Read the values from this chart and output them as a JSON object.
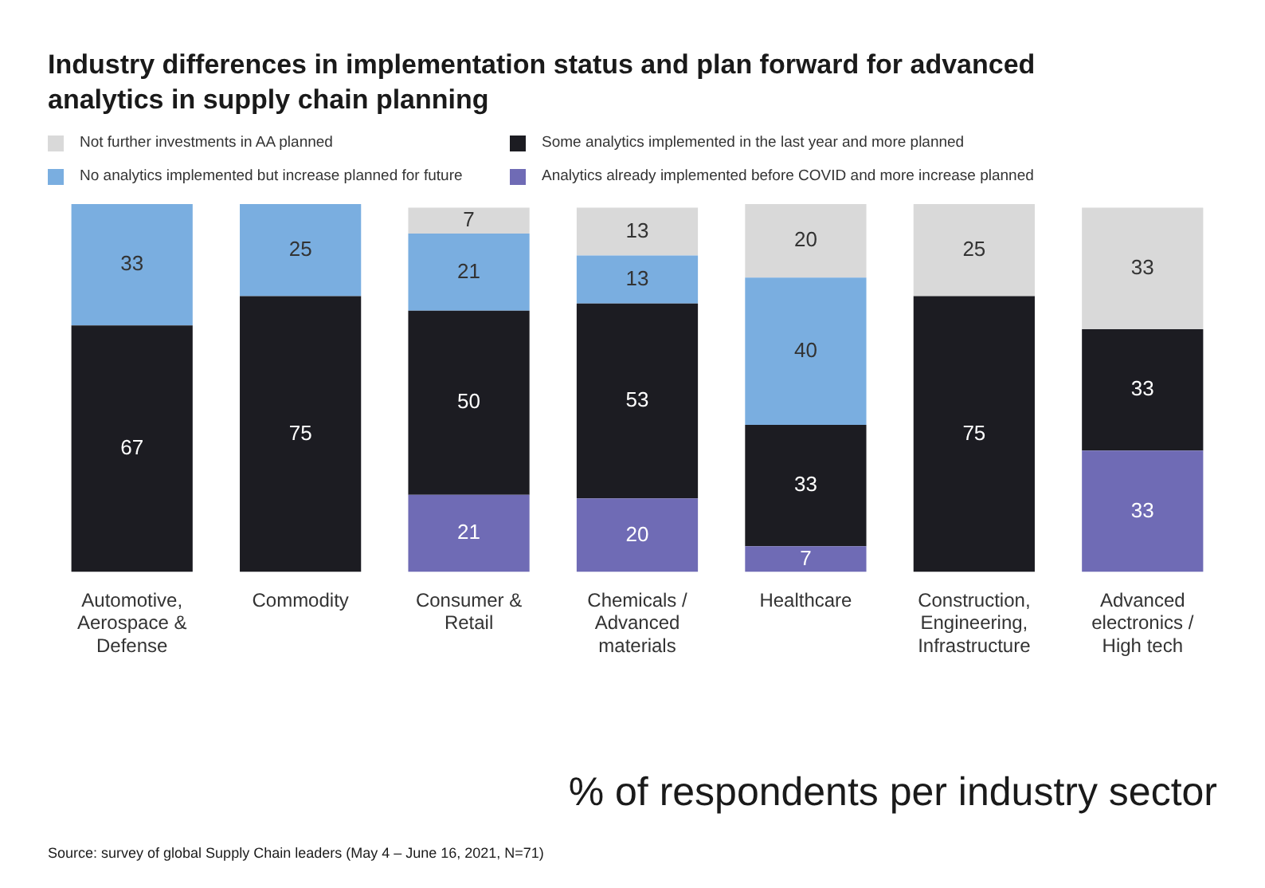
{
  "chart_data": {
    "type": "bar",
    "title": "Industry differences in implementation status and plan forward for advanced analytics in supply chain planning",
    "categories": [
      "Automotive, Aerospace & Defense",
      "Commodity",
      "Consumer & Retail",
      "Chemicals / Advanced materials",
      "Healthcare",
      "Construction, Engineering, Infrastructure",
      "Advanced electronics / High tech"
    ],
    "series": [
      {
        "name": "Analytics already implemented before COVID and more increase planned",
        "color": "#6f6bb5",
        "values": [
          null,
          null,
          21,
          20,
          7,
          null,
          33
        ]
      },
      {
        "name": "Some analytics implemented in the last year and more planned",
        "color": "#1c1c22",
        "values": [
          67,
          75,
          50,
          53,
          33,
          75,
          33
        ]
      },
      {
        "name": "No analytics implemented but increase planned for future",
        "color": "#7aaee0",
        "values": [
          33,
          25,
          21,
          13,
          40,
          null,
          null
        ]
      },
      {
        "name": "Not further investments in AA planned",
        "color": "#d9d9d9",
        "values": [
          null,
          null,
          7,
          13,
          20,
          25,
          33
        ]
      }
    ],
    "stacked": true,
    "data_labels": true,
    "legend": "top",
    "tick_labels": "x",
    "annotations": [
      "% of respondents per industry sector",
      "Source: survey of global Supply Chain leaders (May 4 – June 16, 2021, N=71)"
    ]
  }
}
